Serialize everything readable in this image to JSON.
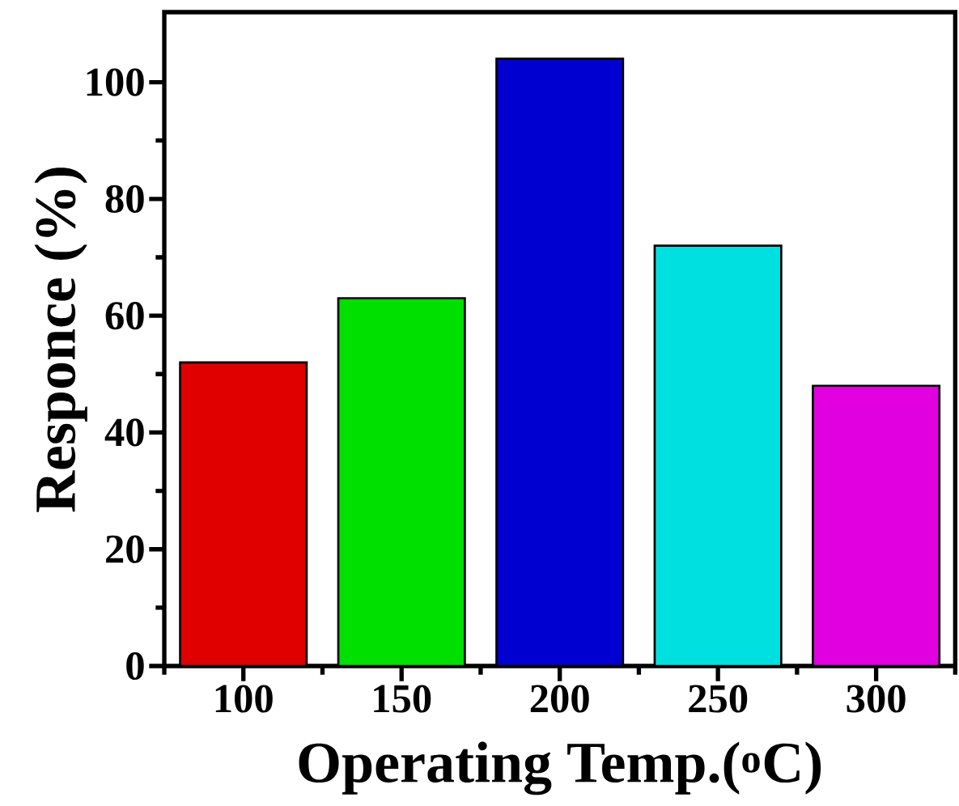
{
  "chart_data": {
    "type": "bar",
    "xlabel": "Operating Temp.($^{o}$C)",
    "ylabel": "Responce (%)",
    "categories": [
      "100",
      "150",
      "200",
      "250",
      "300"
    ],
    "values": [
      52,
      63,
      104,
      72,
      48
    ],
    "colors": [
      "#e00000",
      "#00e000",
      "#0000d0",
      "#00e0e0",
      "#e000e0"
    ],
    "ylim": [
      0,
      112
    ],
    "yticks": [
      0,
      20,
      40,
      60,
      80,
      100
    ]
  }
}
